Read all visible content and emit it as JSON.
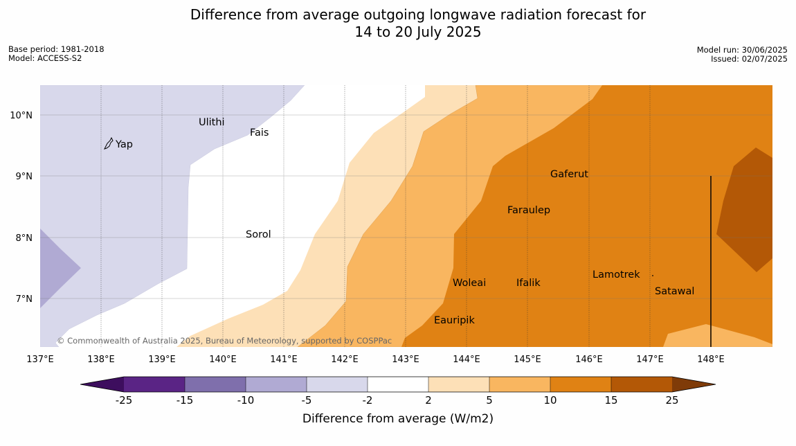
{
  "title": {
    "line1": "Difference from average outgoing longwave radiation forecast for",
    "line2": "14 to 20 July 2025"
  },
  "meta": {
    "base_period": "Base period: 1981-2018",
    "model": "Model: ACCESS-S2",
    "model_run": "Model run: 30/06/2025",
    "issued": "Issued: 02/07/2025"
  },
  "map": {
    "lon_labels": [
      "137°E",
      "138°E",
      "139°E",
      "140°E",
      "141°E",
      "142°E",
      "143°E",
      "144°E",
      "145°E",
      "146°E",
      "147°E",
      "148°E"
    ],
    "lat_labels": [
      "10°N",
      "9°N",
      "8°N",
      "7°N"
    ],
    "places": [
      {
        "name": "Yap"
      },
      {
        "name": "Ulithi"
      },
      {
        "name": "Fais"
      },
      {
        "name": "Sorol"
      },
      {
        "name": "Gaferut"
      },
      {
        "name": "Faraulep"
      },
      {
        "name": "Woleai"
      },
      {
        "name": "Ifalik"
      },
      {
        "name": "Lamotrek"
      },
      {
        "name": "Satawal"
      },
      {
        "name": "Eauripik"
      }
    ],
    "copyright": "© Commonwealth of Australia 2025, Bureau of Meteorology, supported by COSPPac"
  },
  "colorbar": {
    "label": "Difference from average (W/m2)",
    "ticks": [
      "-25",
      "-15",
      "-10",
      "-5",
      "-2",
      "2",
      "5",
      "10",
      "15",
      "25"
    ],
    "colors": {
      "below": "#3d0e5e",
      "c1": "#5a2485",
      "c2": "#7f6fac",
      "c3": "#b0aad3",
      "c4": "#d8d8eb",
      "c5": "#ffffff",
      "c6": "#fde0b7",
      "c7": "#f9b660",
      "c8": "#e08214",
      "c9": "#b35806",
      "above": "#7f3b08"
    }
  }
}
